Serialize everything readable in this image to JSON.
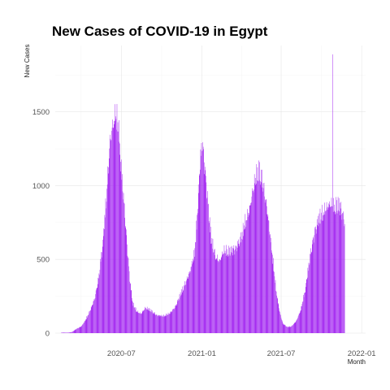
{
  "chart_data": {
    "type": "bar",
    "title": "New Cases of COVID-19 in Egypt",
    "xlabel": "Month",
    "ylabel": "New Cases",
    "x_ticks": [
      "2020-07",
      "2021-01",
      "2021-07",
      "2022-01"
    ],
    "y_ticks": [
      0,
      500,
      1000,
      1500
    ],
    "xlim": [
      "2020-02-01",
      "2022-01-10"
    ],
    "ylim": [
      0,
      1950
    ],
    "grid": true,
    "legend": "none",
    "bar_color": "#a020f0",
    "series_points": [
      [
        "2020-02-14",
        0
      ],
      [
        "2020-03-01",
        2
      ],
      [
        "2020-03-10",
        8
      ],
      [
        "2020-03-20",
        30
      ],
      [
        "2020-04-01",
        50
      ],
      [
        "2020-04-10",
        95
      ],
      [
        "2020-04-20",
        160
      ],
      [
        "2020-05-01",
        250
      ],
      [
        "2020-05-10",
        400
      ],
      [
        "2020-05-20",
        680
      ],
      [
        "2020-05-28",
        1000
      ],
      [
        "2020-06-05",
        1390
      ],
      [
        "2020-06-12",
        1520
      ],
      [
        "2020-06-18",
        1600
      ],
      [
        "2020-06-25",
        1500
      ],
      [
        "2020-07-01",
        1200
      ],
      [
        "2020-07-07",
        950
      ],
      [
        "2020-07-14",
        650
      ],
      [
        "2020-07-20",
        400
      ],
      [
        "2020-07-27",
        220
      ],
      [
        "2020-08-05",
        160
      ],
      [
        "2020-08-15",
        140
      ],
      [
        "2020-08-25",
        185
      ],
      [
        "2020-09-05",
        170
      ],
      [
        "2020-09-20",
        130
      ],
      [
        "2020-10-05",
        125
      ],
      [
        "2020-10-20",
        145
      ],
      [
        "2020-11-01",
        190
      ],
      [
        "2020-11-15",
        300
      ],
      [
        "2020-11-25",
        370
      ],
      [
        "2020-12-05",
        450
      ],
      [
        "2020-12-15",
        580
      ],
      [
        "2020-12-22",
        900
      ],
      [
        "2020-12-28",
        1250
      ],
      [
        "2021-01-02",
        1400
      ],
      [
        "2021-01-08",
        1200
      ],
      [
        "2021-01-15",
        950
      ],
      [
        "2021-01-22",
        700
      ],
      [
        "2021-02-01",
        560
      ],
      [
        "2021-02-10",
        520
      ],
      [
        "2021-02-20",
        600
      ],
      [
        "2021-03-05",
        600
      ],
      [
        "2021-03-20",
        620
      ],
      [
        "2021-04-01",
        700
      ],
      [
        "2021-04-10",
        810
      ],
      [
        "2021-04-20",
        900
      ],
      [
        "2021-04-28",
        1050
      ],
      [
        "2021-05-05",
        1150
      ],
      [
        "2021-05-12",
        1200
      ],
      [
        "2021-05-20",
        1100
      ],
      [
        "2021-05-30",
        900
      ],
      [
        "2021-06-10",
        600
      ],
      [
        "2021-06-20",
        300
      ],
      [
        "2021-06-28",
        150
      ],
      [
        "2021-07-05",
        70
      ],
      [
        "2021-07-15",
        45
      ],
      [
        "2021-07-25",
        50
      ],
      [
        "2021-08-05",
        90
      ],
      [
        "2021-08-15",
        170
      ],
      [
        "2021-08-25",
        320
      ],
      [
        "2021-09-05",
        560
      ],
      [
        "2021-09-15",
        730
      ],
      [
        "2021-09-25",
        840
      ],
      [
        "2021-10-05",
        880
      ],
      [
        "2021-10-15",
        920
      ],
      [
        "2021-10-22",
        940
      ],
      [
        "2021-10-30",
        920
      ],
      [
        "2021-11-08",
        945
      ],
      [
        "2021-11-14",
        920
      ],
      [
        "2021-11-20",
        850
      ],
      [
        "2021-11-23",
        810
      ]
    ],
    "annotations": [
      {
        "date": "2021-10-27",
        "value": 1890
      }
    ]
  }
}
